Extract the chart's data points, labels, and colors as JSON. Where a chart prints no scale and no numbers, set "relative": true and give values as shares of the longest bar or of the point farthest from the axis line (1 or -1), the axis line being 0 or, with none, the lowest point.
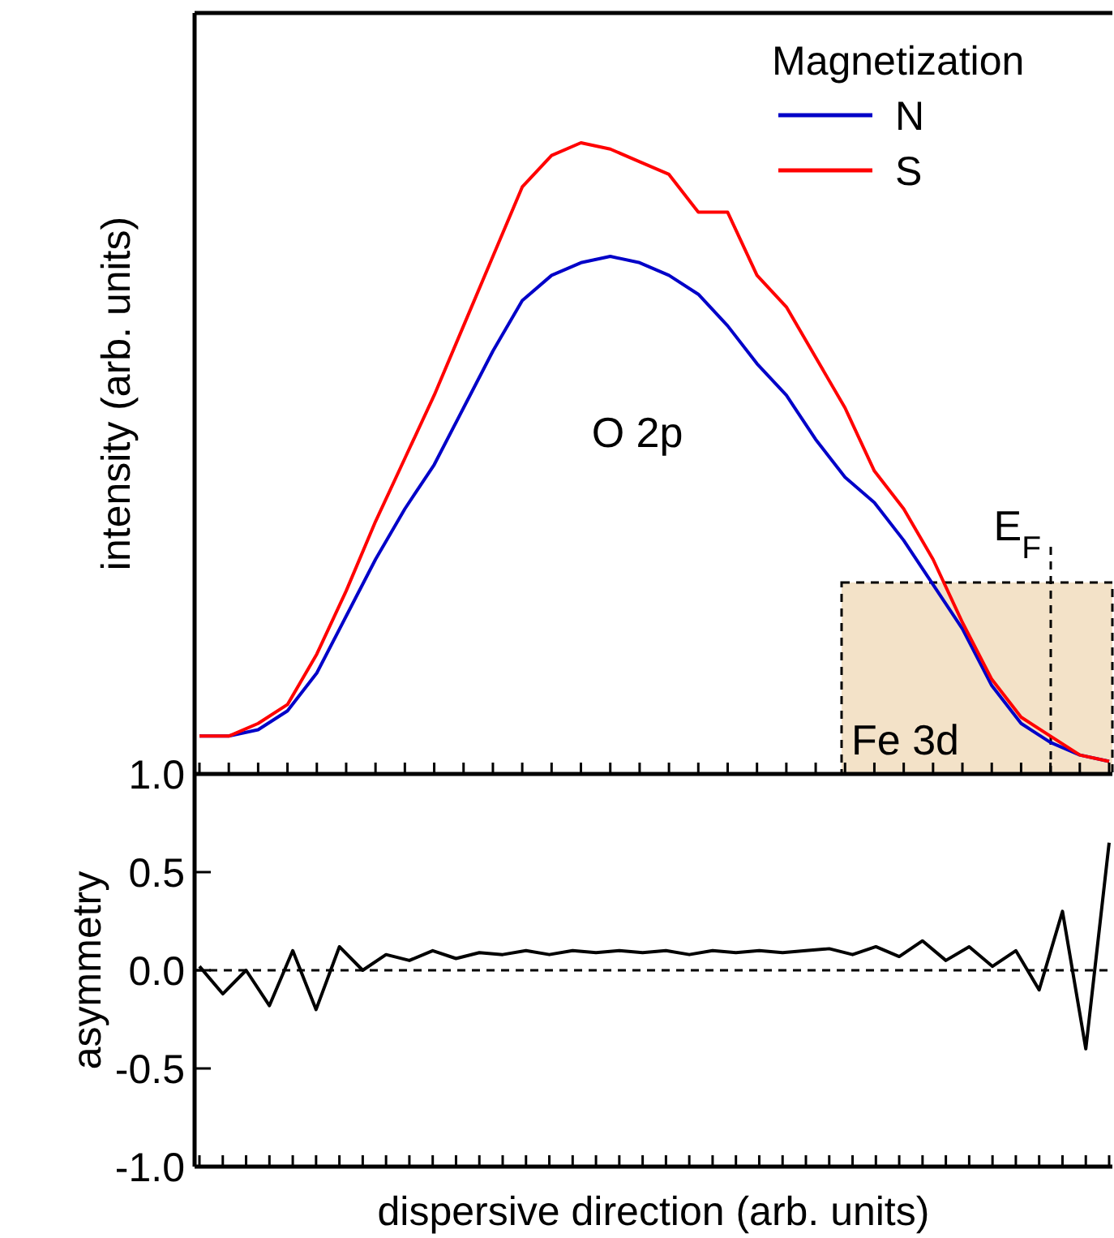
{
  "chart_data": [
    {
      "type": "line",
      "ylabel": "intensity (arb. units)",
      "relative": true,
      "legend_title": "Magnetization",
      "legend": "top right",
      "tick_labels": false,
      "line_style": "solid",
      "marker": "none",
      "categories": [
        null,
        null,
        null,
        null,
        null,
        null,
        null,
        null,
        null,
        null,
        null,
        null,
        null,
        null,
        null,
        null,
        null,
        null,
        null,
        null,
        null,
        null,
        null,
        null,
        null,
        null,
        null,
        null,
        null,
        null,
        null,
        null
      ],
      "series": [
        {
          "name": "N",
          "color": "#0000c8",
          "values": [
            0.06,
            0.06,
            0.07,
            0.1,
            0.16,
            0.25,
            0.34,
            0.42,
            0.49,
            0.58,
            0.67,
            0.75,
            0.79,
            0.81,
            0.82,
            0.81,
            0.79,
            0.76,
            0.71,
            0.65,
            0.6,
            0.53,
            0.47,
            0.43,
            0.37,
            0.3,
            0.23,
            0.14,
            0.08,
            0.05,
            0.03,
            0.02
          ]
        },
        {
          "name": "S",
          "color": "#ff0000",
          "values": [
            0.06,
            0.06,
            0.08,
            0.11,
            0.19,
            0.29,
            0.4,
            0.5,
            0.6,
            0.71,
            0.82,
            0.93,
            0.98,
            1.0,
            0.99,
            0.97,
            0.95,
            0.89,
            0.89,
            0.79,
            0.74,
            0.66,
            0.58,
            0.48,
            0.42,
            0.34,
            0.24,
            0.15,
            0.09,
            0.06,
            0.03,
            0.02
          ]
        }
      ],
      "annotations": [
        "O 2p",
        "Fe 3d",
        "E$_{F}$"
      ]
    },
    {
      "type": "line",
      "xlabel": "dispersive direction (arb. units)",
      "ylabel": "asymmetry",
      "tick_labels": "y",
      "line_style": "solid",
      "marker": "none",
      "ylim": [
        -1,
        1
      ],
      "yticks": [
        {
          "value": -1,
          "label": "-1.0"
        },
        {
          "value": -0.5,
          "label": "-0.5"
        },
        {
          "value": 0,
          "label": "0.0"
        },
        {
          "value": 0.5,
          "label": "0.5"
        },
        {
          "value": 1,
          "label": "1.0"
        }
      ],
      "categories": [
        null,
        null,
        null,
        null,
        null,
        null,
        null,
        null,
        null,
        null,
        null,
        null,
        null,
        null,
        null,
        null,
        null,
        null,
        null,
        null,
        null,
        null,
        null,
        null,
        null,
        null,
        null,
        null,
        null,
        null,
        null,
        null,
        null,
        null,
        null,
        null,
        null,
        null,
        null,
        null
      ],
      "series": [
        {
          "color": "#000000",
          "values": [
            0.02,
            -0.12,
            0.0,
            -0.18,
            0.1,
            -0.2,
            0.12,
            0.0,
            0.08,
            0.05,
            0.1,
            0.06,
            0.09,
            0.08,
            0.1,
            0.08,
            0.1,
            0.09,
            0.1,
            0.09,
            0.1,
            0.08,
            0.1,
            0.09,
            0.1,
            0.09,
            0.1,
            0.11,
            0.08,
            0.12,
            0.07,
            0.15,
            0.05,
            0.12,
            0.02,
            0.1,
            -0.1,
            0.3,
            -0.4,
            0.65
          ]
        }
      ],
      "ref_lines": [
        {
          "axis": "y",
          "value": 0,
          "line_style": "dashed",
          "color": "#000000"
        }
      ]
    }
  ]
}
